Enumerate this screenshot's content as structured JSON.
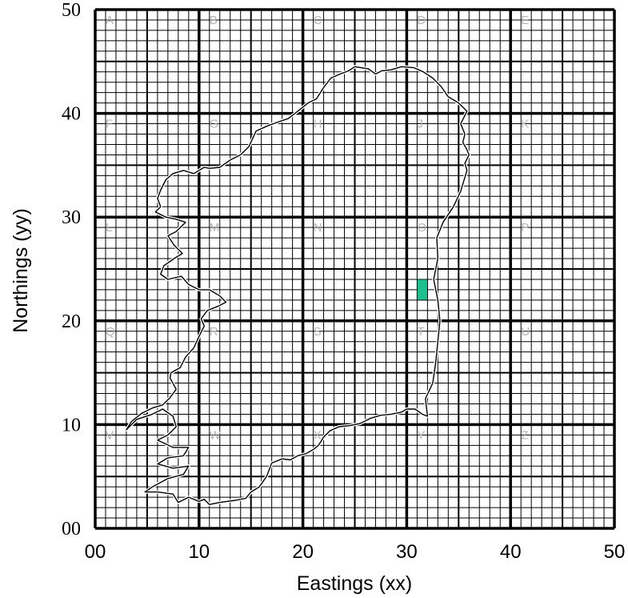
{
  "chart_data": {
    "type": "map-grid",
    "xlabel": "Eastings (xx)",
    "ylabel": "Northings (yy)",
    "xlim": [
      0,
      50
    ],
    "ylim": [
      0,
      50
    ],
    "x_ticks": [
      "00",
      "10",
      "20",
      "30",
      "40",
      "50"
    ],
    "y_ticks": [
      "00",
      "10",
      "20",
      "30",
      "40",
      "50"
    ],
    "major_cell": 10,
    "mid_cell": 5,
    "minor_cell": 1,
    "zone_letters": [
      {
        "letter": "A",
        "x": 0,
        "y": 50
      },
      {
        "letter": "B",
        "x": 10,
        "y": 50
      },
      {
        "letter": "C",
        "x": 20,
        "y": 50
      },
      {
        "letter": "D",
        "x": 30,
        "y": 50
      },
      {
        "letter": "E",
        "x": 40,
        "y": 50
      },
      {
        "letter": "F",
        "x": 0,
        "y": 40
      },
      {
        "letter": "G",
        "x": 10,
        "y": 40
      },
      {
        "letter": "H",
        "x": 20,
        "y": 40
      },
      {
        "letter": "J",
        "x": 30,
        "y": 40
      },
      {
        "letter": "K",
        "x": 40,
        "y": 40
      },
      {
        "letter": "L",
        "x": 0,
        "y": 30
      },
      {
        "letter": "M",
        "x": 10,
        "y": 30
      },
      {
        "letter": "N",
        "x": 20,
        "y": 30
      },
      {
        "letter": "O",
        "x": 30,
        "y": 30
      },
      {
        "letter": "P",
        "x": 40,
        "y": 30
      },
      {
        "letter": "Q",
        "x": 0,
        "y": 20
      },
      {
        "letter": "R",
        "x": 10,
        "y": 20
      },
      {
        "letter": "S",
        "x": 20,
        "y": 20
      },
      {
        "letter": "T",
        "x": 30,
        "y": 20
      },
      {
        "letter": "U",
        "x": 40,
        "y": 20
      },
      {
        "letter": "V",
        "x": 0,
        "y": 10
      },
      {
        "letter": "W",
        "x": 10,
        "y": 10
      },
      {
        "letter": "X",
        "x": 20,
        "y": 10
      },
      {
        "letter": "Y",
        "x": 30,
        "y": 10
      },
      {
        "letter": "Z",
        "x": 40,
        "y": 10
      }
    ],
    "highlight": {
      "x0": 31,
      "x1": 32,
      "y0": 22,
      "y1": 24,
      "color": "#1fbf8f"
    },
    "outline": [
      [
        3,
        9.5
      ],
      [
        4,
        10.5
      ],
      [
        5.5,
        11
      ],
      [
        6.5,
        11.5
      ],
      [
        7.5,
        10.8
      ],
      [
        7.8,
        9.8
      ],
      [
        7,
        9
      ],
      [
        6,
        8.5
      ],
      [
        7.5,
        7.8
      ],
      [
        9,
        7.8
      ],
      [
        8.5,
        7
      ],
      [
        7,
        6.8
      ],
      [
        6,
        6.2
      ],
      [
        7.5,
        5.8
      ],
      [
        9,
        6
      ],
      [
        8.5,
        5.2
      ],
      [
        7,
        4.8
      ],
      [
        5.5,
        4
      ],
      [
        4.8,
        3.5
      ],
      [
        6,
        3.5
      ],
      [
        7.5,
        3.3
      ],
      [
        8,
        2.5
      ],
      [
        9,
        3
      ],
      [
        10,
        2.6
      ],
      [
        10.5,
        2.8
      ],
      [
        11,
        2.3
      ],
      [
        12,
        2.5
      ],
      [
        13.5,
        2.7
      ],
      [
        14.5,
        2.9
      ],
      [
        15,
        3.5
      ],
      [
        15.8,
        4
      ],
      [
        16.5,
        5
      ],
      [
        17,
        6.3
      ],
      [
        18,
        6.7
      ],
      [
        18.8,
        6.6
      ],
      [
        19.5,
        7
      ],
      [
        20.3,
        7.2
      ],
      [
        21,
        7.6
      ],
      [
        21.5,
        8
      ],
      [
        22,
        8.8
      ],
      [
        22.6,
        9.4
      ],
      [
        23.5,
        9.8
      ],
      [
        24.5,
        9.9
      ],
      [
        25.5,
        10.1
      ],
      [
        26.5,
        10.6
      ],
      [
        27.5,
        10.9
      ],
      [
        28.5,
        11
      ],
      [
        29.5,
        11.2
      ],
      [
        30,
        11.5
      ],
      [
        30.8,
        11.5
      ],
      [
        31.5,
        11
      ],
      [
        32,
        10.8
      ],
      [
        31.8,
        12.5
      ],
      [
        32.5,
        14
      ],
      [
        32.8,
        16
      ],
      [
        33,
        18
      ],
      [
        33.2,
        20
      ],
      [
        33,
        22
      ],
      [
        32.6,
        24
      ],
      [
        33,
        26
      ],
      [
        32.9,
        28
      ],
      [
        33.5,
        29.5
      ],
      [
        34.5,
        31
      ],
      [
        35.2,
        32.5
      ],
      [
        35.5,
        33.5
      ],
      [
        35.8,
        34.5
      ],
      [
        35.6,
        35.2
      ],
      [
        36,
        36
      ],
      [
        35.8,
        36.5
      ],
      [
        35.4,
        37.2
      ],
      [
        35.6,
        38
      ],
      [
        35.2,
        39
      ],
      [
        35.8,
        40.2
      ],
      [
        35,
        41
      ],
      [
        34,
        41.6
      ],
      [
        33.3,
        42.6
      ],
      [
        32.5,
        43.4
      ],
      [
        31.6,
        44
      ],
      [
        30.7,
        44.4
      ],
      [
        29.5,
        44.5
      ],
      [
        28.5,
        44.2
      ],
      [
        27.6,
        44.1
      ],
      [
        27,
        43.8
      ],
      [
        26.3,
        44.3
      ],
      [
        25.6,
        44.4
      ],
      [
        25,
        44.5
      ],
      [
        24.4,
        44.1
      ],
      [
        23.6,
        43.8
      ],
      [
        22.7,
        43.4
      ],
      [
        22,
        42.5
      ],
      [
        21.3,
        41.4
      ],
      [
        20.5,
        41
      ],
      [
        19.5,
        40.2
      ],
      [
        18.6,
        39.5
      ],
      [
        17.7,
        39.2
      ],
      [
        16.6,
        38.8
      ],
      [
        15.5,
        38.3
      ],
      [
        14.8,
        36.8
      ],
      [
        14,
        36
      ],
      [
        13,
        35.5
      ],
      [
        12,
        34.8
      ],
      [
        11,
        34.7
      ],
      [
        10.5,
        34.8
      ],
      [
        9.5,
        34.2
      ],
      [
        8.5,
        34.5
      ],
      [
        7.5,
        34.2
      ],
      [
        6.8,
        33.6
      ],
      [
        6.3,
        32.6
      ],
      [
        6,
        31.8
      ],
      [
        6.3,
        31
      ],
      [
        5.8,
        30.5
      ],
      [
        6.8,
        30
      ],
      [
        7.8,
        29.8
      ],
      [
        8.7,
        29.5
      ],
      [
        7.8,
        28.6
      ],
      [
        7,
        28.2
      ],
      [
        7.6,
        27.3
      ],
      [
        8.4,
        26.5
      ],
      [
        7.6,
        26
      ],
      [
        6.6,
        25.3
      ],
      [
        6.3,
        24.5
      ],
      [
        7,
        24
      ],
      [
        8.3,
        24.3
      ],
      [
        9,
        23.5
      ],
      [
        10,
        23
      ],
      [
        11,
        23
      ],
      [
        12,
        22.4
      ],
      [
        12.6,
        21.8
      ],
      [
        11.8,
        21.4
      ],
      [
        10.8,
        21
      ],
      [
        10.2,
        20.2
      ],
      [
        10.5,
        19.5
      ],
      [
        10,
        18.5
      ],
      [
        9.5,
        17.4
      ],
      [
        8.7,
        16.5
      ],
      [
        8.2,
        15.5
      ],
      [
        7.3,
        15
      ],
      [
        7.2,
        14.5
      ],
      [
        7.8,
        13.4
      ],
      [
        7.2,
        12.6
      ],
      [
        6.5,
        11.9
      ],
      [
        5.5,
        11.6
      ],
      [
        4.5,
        11.1
      ],
      [
        3.5,
        10.3
      ],
      [
        3,
        9.5
      ]
    ]
  }
}
